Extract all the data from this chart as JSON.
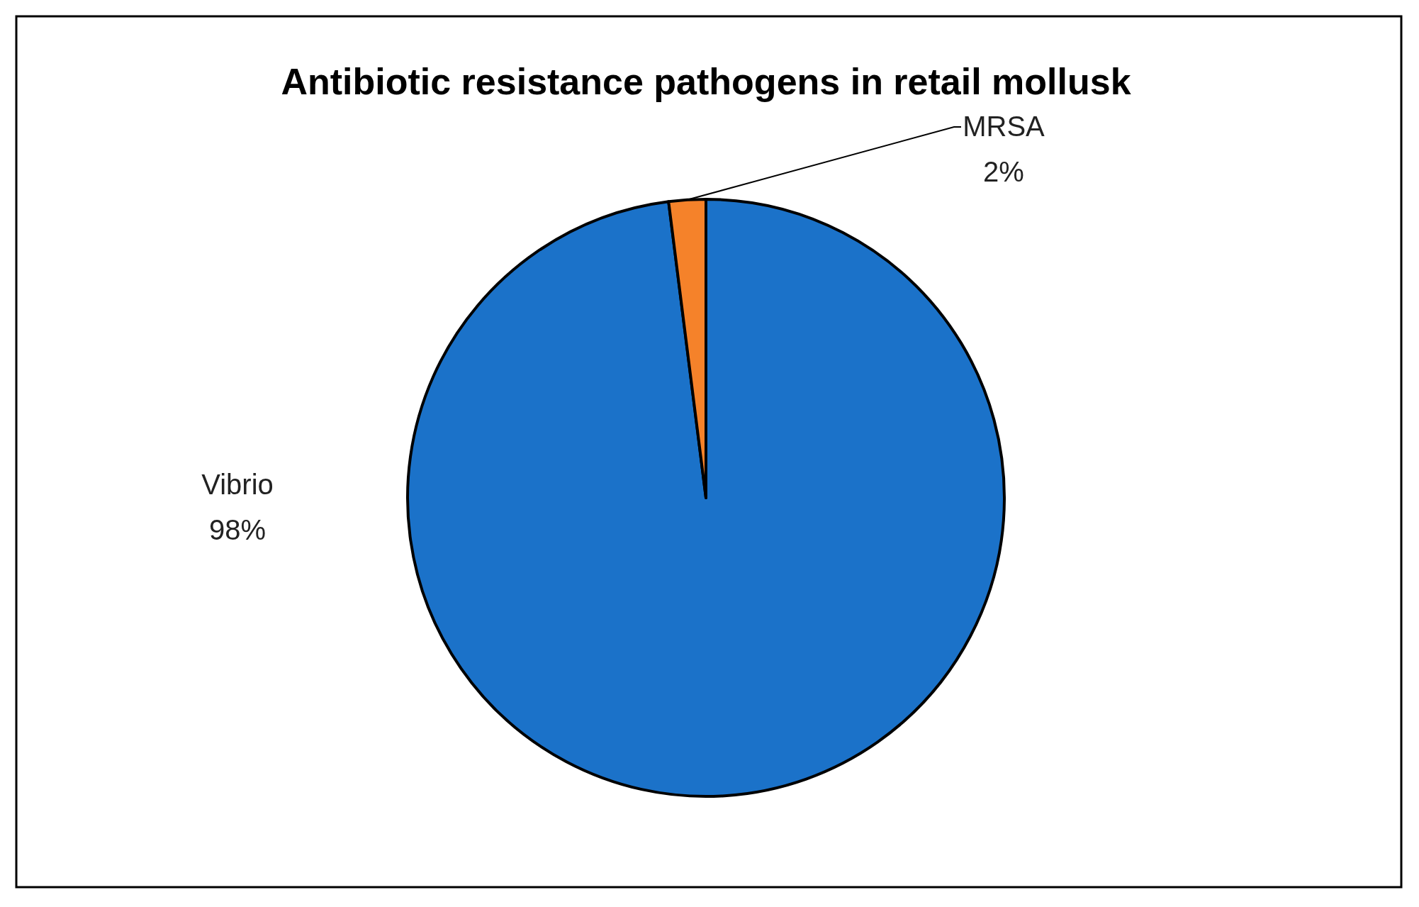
{
  "chart_data": {
    "type": "pie",
    "title": "Antibiotic resistance pathogens in retail mollusk",
    "categories": [
      "Vibrio",
      "MRSA"
    ],
    "values": [
      98,
      2
    ],
    "value_labels": [
      "98%",
      "2%"
    ],
    "colors": [
      "#1b72c9",
      "#f5822a"
    ]
  }
}
